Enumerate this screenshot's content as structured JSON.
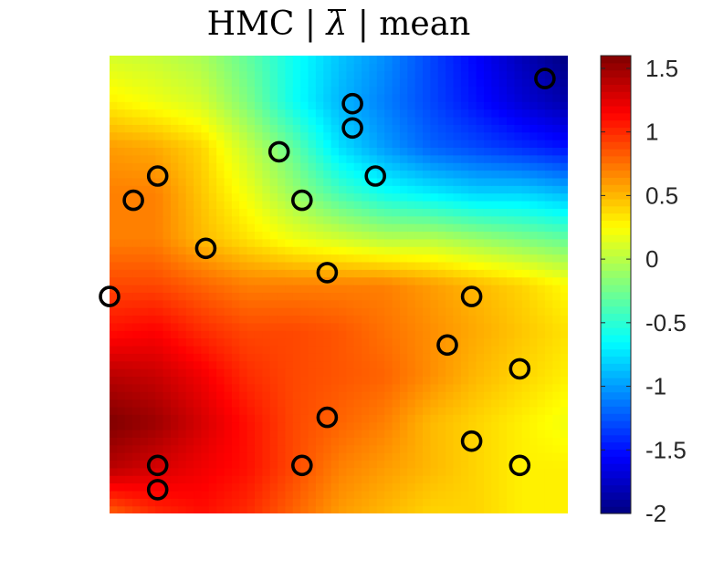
{
  "chart_data": {
    "type": "heatmap",
    "title": {
      "prefix": "HMC | ",
      "symbol": "λ",
      "suffix": " | mean"
    },
    "xlabel": "",
    "ylabel": "",
    "domain": {
      "x": [
        0,
        1
      ],
      "y": [
        0,
        1
      ]
    },
    "grid": false,
    "colormap": "jet",
    "colorbar": {
      "range": [
        -2,
        1.6
      ],
      "ticks": [
        1.5,
        1,
        0.5,
        0,
        -0.5,
        -1,
        -1.5,
        -2
      ],
      "tick_labels": [
        "1.5",
        "1",
        "0.5",
        "0",
        "-0.5",
        "-1",
        "-1.5",
        "-2"
      ],
      "placement": "right"
    },
    "field_estimate": {
      "grid": [
        [
          0.8,
          1.0,
          1.1,
          1.0,
          0.8,
          0.6,
          0.5,
          0.4,
          0.4,
          0.3,
          0.3
        ],
        [
          1.4,
          1.3,
          1.2,
          1.1,
          0.9,
          0.7,
          0.6,
          0.5,
          0.4,
          0.3,
          0.3
        ],
        [
          1.6,
          1.5,
          1.3,
          1.1,
          0.9,
          0.8,
          0.7,
          0.5,
          0.4,
          0.3,
          0.2
        ],
        [
          1.4,
          1.35,
          1.2,
          1.0,
          0.9,
          0.85,
          0.8,
          0.65,
          0.5,
          0.4,
          0.3
        ],
        [
          1.1,
          1.15,
          1.0,
          0.9,
          0.9,
          0.85,
          0.75,
          0.65,
          0.55,
          0.45,
          0.35
        ],
        [
          0.9,
          0.9,
          0.8,
          0.7,
          0.7,
          0.7,
          0.7,
          0.6,
          0.5,
          0.4,
          0.25
        ],
        [
          0.7,
          0.7,
          0.5,
          0.35,
          0.2,
          0.1,
          0.0,
          0.0,
          -0.1,
          -0.2,
          -0.3
        ],
        [
          0.7,
          0.7,
          0.45,
          0.2,
          -0.1,
          -0.4,
          -0.6,
          -0.7,
          -0.8,
          -0.8,
          -0.9
        ],
        [
          0.6,
          0.55,
          0.4,
          0.05,
          -0.3,
          -0.75,
          -1.0,
          -1.2,
          -1.3,
          -1.4,
          -1.5
        ],
        [
          0.3,
          0.2,
          0.1,
          -0.2,
          -0.6,
          -0.9,
          -1.1,
          -1.3,
          -1.5,
          -1.7,
          -1.85
        ],
        [
          0.1,
          0.05,
          -0.05,
          -0.3,
          -0.6,
          -0.85,
          -1.05,
          -1.3,
          -1.55,
          -1.8,
          -2.0
        ]
      ]
    },
    "observations": [
      {
        "x": 0.95,
        "y": 0.95
      },
      {
        "x": 0.53,
        "y": 0.895
      },
      {
        "x": 0.53,
        "y": 0.842
      },
      {
        "x": 0.37,
        "y": 0.79
      },
      {
        "x": 0.58,
        "y": 0.737
      },
      {
        "x": 0.105,
        "y": 0.737
      },
      {
        "x": 0.052,
        "y": 0.684
      },
      {
        "x": 0.42,
        "y": 0.684
      },
      {
        "x": 0.21,
        "y": 0.579
      },
      {
        "x": 0.475,
        "y": 0.526
      },
      {
        "x": 0.0,
        "y": 0.474
      },
      {
        "x": 0.79,
        "y": 0.474
      },
      {
        "x": 0.737,
        "y": 0.368
      },
      {
        "x": 0.895,
        "y": 0.316
      },
      {
        "x": 0.475,
        "y": 0.21
      },
      {
        "x": 0.79,
        "y": 0.158
      },
      {
        "x": 0.105,
        "y": 0.105
      },
      {
        "x": 0.42,
        "y": 0.105
      },
      {
        "x": 0.895,
        "y": 0.105
      },
      {
        "x": 0.105,
        "y": 0.052
      }
    ]
  }
}
